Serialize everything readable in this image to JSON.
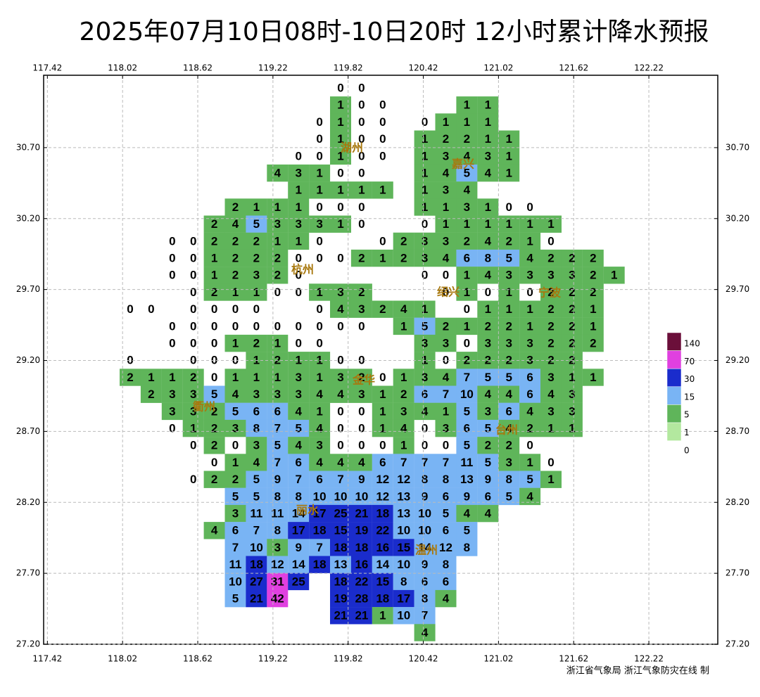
{
  "chart_data": {
    "type": "grid-map",
    "title": "2025年07月10日08时-10日20时 12小时累计降水预报",
    "credit": "浙江省气象局  浙江气象防灾在线 制",
    "xlim": [
      117.39,
      122.77
    ],
    "ylim": [
      27.2,
      31.21
    ],
    "xticks": [
      117.42,
      118.02,
      118.62,
      119.22,
      119.82,
      120.42,
      121.02,
      121.62,
      122.22
    ],
    "yticks": [
      {
        "value": 30.7,
        "label": "30.70"
      },
      {
        "value": 30.2,
        "label": "30.20"
      },
      {
        "value": 29.7,
        "label": "29.70"
      },
      {
        "value": 29.2,
        "label": "29.20"
      },
      {
        "value": 28.7,
        "label": "28.70"
      },
      {
        "value": 28.2,
        "label": "28.20"
      },
      {
        "value": 27.7,
        "label": "27.70"
      },
      {
        "value": 27.2,
        "label": "27.20"
      }
    ],
    "grid": true,
    "cities": [
      "湖州",
      "嘉兴",
      "杭州",
      "绍兴",
      "宁波",
      "衢州",
      "金华",
      "台州",
      "丽水",
      "温州"
    ],
    "legend": {
      "levels": [
        140,
        70,
        30,
        15,
        5,
        1,
        0
      ],
      "colors": [
        "#6b0f3a",
        "#e040e0",
        "#1a2ccc",
        "#79b4f4",
        "#5fb55a",
        "#b3e89f"
      ]
    },
    "rows": [
      [
        null,
        null,
        null,
        null,
        null,
        null,
        null,
        null,
        null,
        null,
        0,
        0,
        null,
        null,
        null,
        null,
        null,
        null,
        null,
        null,
        null,
        null,
        null,
        null
      ],
      [
        null,
        null,
        null,
        null,
        null,
        null,
        null,
        null,
        null,
        null,
        1,
        0,
        0,
        null,
        null,
        null,
        1,
        1,
        null,
        null,
        null,
        null,
        null,
        null
      ],
      [
        null,
        null,
        null,
        null,
        null,
        null,
        null,
        null,
        null,
        0,
        1,
        0,
        0,
        null,
        0,
        1,
        1,
        1,
        null,
        null,
        null,
        null,
        null,
        null
      ],
      [
        null,
        null,
        null,
        null,
        null,
        null,
        null,
        null,
        null,
        0,
        1,
        0,
        0,
        null,
        1,
        2,
        2,
        1,
        1,
        null,
        null,
        null,
        null,
        null
      ],
      [
        null,
        null,
        null,
        null,
        null,
        null,
        null,
        null,
        0,
        0,
        1,
        0,
        0,
        null,
        1,
        3,
        4,
        3,
        1,
        null,
        null,
        null,
        null,
        null
      ],
      [
        null,
        null,
        null,
        null,
        null,
        null,
        null,
        4,
        3,
        1,
        0,
        0,
        null,
        null,
        1,
        4,
        5,
        4,
        1,
        null,
        null,
        null,
        null,
        null
      ],
      [
        null,
        null,
        null,
        null,
        null,
        null,
        null,
        null,
        1,
        1,
        1,
        1,
        1,
        null,
        1,
        3,
        4,
        null,
        null,
        null,
        null,
        null,
        null,
        null
      ],
      [
        null,
        null,
        null,
        null,
        null,
        2,
        1,
        1,
        1,
        0,
        0,
        0,
        null,
        null,
        1,
        1,
        3,
        1,
        0,
        0,
        null,
        null,
        null,
        null
      ],
      [
        null,
        null,
        null,
        null,
        2,
        4,
        5,
        3,
        3,
        3,
        1,
        0,
        null,
        null,
        0,
        1,
        1,
        1,
        1,
        1,
        1,
        null,
        null,
        null
      ],
      [
        null,
        null,
        0,
        0,
        2,
        2,
        2,
        1,
        1,
        0,
        null,
        null,
        0,
        2,
        3,
        3,
        2,
        4,
        2,
        1,
        0,
        null,
        null,
        null
      ],
      [
        null,
        null,
        0,
        0,
        1,
        2,
        2,
        2,
        0,
        0,
        0,
        2,
        1,
        2,
        3,
        4,
        6,
        8,
        5,
        4,
        2,
        2,
        2,
        null
      ],
      [
        null,
        null,
        0,
        0,
        1,
        2,
        3,
        2,
        0,
        null,
        null,
        null,
        null,
        null,
        0,
        0,
        1,
        4,
        3,
        3,
        3,
        3,
        2,
        1
      ],
      [
        null,
        null,
        null,
        0,
        2,
        1,
        1,
        0,
        0,
        1,
        3,
        2,
        null,
        null,
        null,
        0,
        1,
        0,
        1,
        0,
        2,
        2,
        2,
        null
      ],
      [
        0,
        0,
        null,
        0,
        0,
        0,
        0,
        null,
        null,
        0,
        4,
        3,
        2,
        4,
        1,
        null,
        0,
        1,
        1,
        1,
        2,
        2,
        1,
        null
      ],
      [
        null,
        null,
        0,
        0,
        0,
        0,
        0,
        0,
        0,
        0,
        0,
        0,
        null,
        1,
        5,
        2,
        1,
        2,
        2,
        1,
        2,
        2,
        1,
        null
      ],
      [
        null,
        null,
        0,
        0,
        0,
        1,
        2,
        1,
        0,
        0,
        null,
        null,
        null,
        null,
        3,
        3,
        0,
        3,
        3,
        3,
        2,
        2,
        2,
        null
      ],
      [
        0,
        null,
        null,
        0,
        0,
        0,
        1,
        2,
        1,
        1,
        0,
        0,
        null,
        null,
        1,
        0,
        2,
        2,
        2,
        3,
        2,
        2,
        null,
        null
      ],
      [
        2,
        1,
        1,
        2,
        0,
        1,
        1,
        1,
        3,
        1,
        3,
        2,
        0,
        1,
        3,
        4,
        7,
        5,
        5,
        6,
        3,
        1,
        1,
        null
      ],
      [
        null,
        2,
        3,
        3,
        5,
        4,
        3,
        3,
        3,
        4,
        4,
        3,
        1,
        2,
        6,
        7,
        10,
        4,
        4,
        6,
        4,
        3,
        null,
        null
      ],
      [
        null,
        null,
        3,
        3,
        2,
        5,
        6,
        6,
        4,
        1,
        0,
        0,
        1,
        3,
        4,
        1,
        5,
        3,
        6,
        4,
        3,
        3,
        null,
        null
      ],
      [
        null,
        null,
        0,
        1,
        2,
        3,
        8,
        7,
        5,
        4,
        0,
        0,
        1,
        4,
        0,
        3,
        6,
        5,
        4,
        2,
        1,
        1,
        null,
        null
      ],
      [
        null,
        null,
        null,
        0,
        2,
        0,
        3,
        5,
        4,
        3,
        0,
        0,
        0,
        1,
        0,
        0,
        5,
        2,
        2,
        0,
        null,
        null,
        null,
        null
      ],
      [
        null,
        null,
        null,
        null,
        0,
        1,
        4,
        7,
        6,
        4,
        4,
        4,
        6,
        7,
        7,
        7,
        11,
        5,
        3,
        1,
        0,
        null,
        null,
        null
      ],
      [
        null,
        null,
        null,
        0,
        2,
        2,
        5,
        9,
        7,
        6,
        7,
        9,
        12,
        12,
        8,
        8,
        13,
        9,
        8,
        5,
        1,
        null,
        null,
        null
      ],
      [
        null,
        null,
        null,
        null,
        null,
        5,
        5,
        8,
        8,
        10,
        10,
        10,
        12,
        13,
        9,
        6,
        9,
        6,
        5,
        4,
        null,
        null,
        null,
        null
      ],
      [
        null,
        null,
        null,
        null,
        null,
        3,
        11,
        11,
        14,
        17,
        25,
        21,
        18,
        13,
        10,
        5,
        4,
        4,
        null,
        null,
        null,
        null,
        null,
        null
      ],
      [
        null,
        null,
        null,
        null,
        4,
        6,
        7,
        8,
        17,
        18,
        15,
        19,
        22,
        10,
        10,
        6,
        5,
        null,
        null,
        null,
        null,
        null,
        null,
        null
      ],
      [
        null,
        null,
        null,
        null,
        null,
        7,
        10,
        3,
        9,
        7,
        18,
        18,
        16,
        15,
        14,
        12,
        8,
        null,
        null,
        null,
        null,
        null,
        null,
        null
      ],
      [
        null,
        null,
        null,
        null,
        null,
        11,
        18,
        12,
        14,
        18,
        13,
        16,
        14,
        10,
        9,
        8,
        null,
        null,
        null,
        null,
        null,
        null,
        null,
        null
      ],
      [
        null,
        null,
        null,
        null,
        null,
        10,
        27,
        31,
        25,
        null,
        18,
        22,
        15,
        8,
        6,
        6,
        null,
        null,
        null,
        null,
        null,
        null,
        null,
        null
      ],
      [
        null,
        null,
        null,
        null,
        null,
        5,
        21,
        42,
        null,
        null,
        19,
        28,
        18,
        17,
        8,
        4,
        null,
        null,
        null,
        null,
        null,
        null,
        null,
        null
      ],
      [
        null,
        null,
        null,
        null,
        null,
        null,
        null,
        null,
        null,
        null,
        21,
        21,
        1,
        10,
        7,
        null,
        null,
        null,
        null,
        null,
        null,
        null,
        null,
        null
      ],
      [
        null,
        null,
        null,
        null,
        null,
        null,
        null,
        null,
        null,
        null,
        null,
        null,
        null,
        null,
        4,
        null,
        null,
        null,
        null,
        null,
        null,
        null,
        null,
        null
      ]
    ]
  }
}
